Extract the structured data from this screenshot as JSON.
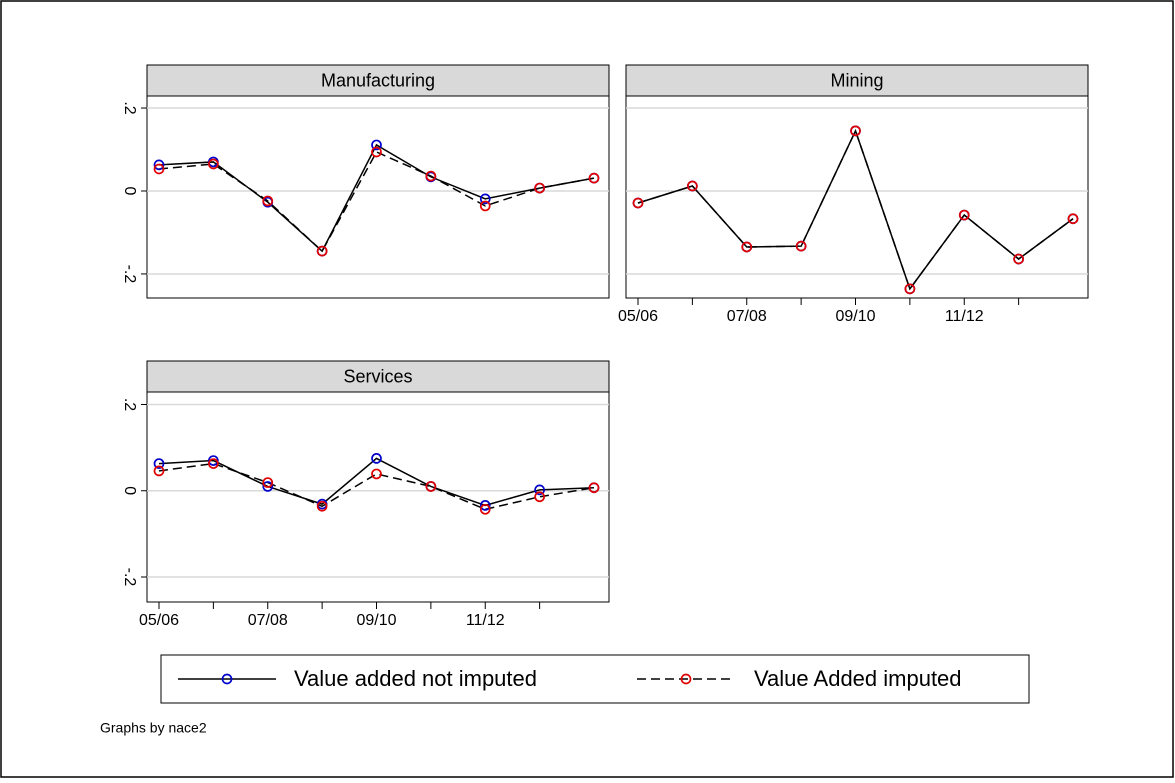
{
  "chart_data": [
    {
      "type": "line",
      "title": "Manufacturing",
      "categories": [
        "05/06",
        null,
        "07/08",
        null,
        "09/10",
        null,
        "11/12",
        null,
        null
      ],
      "ylim": [
        -0.258,
        0.229
      ],
      "yticks": [
        {
          "value": -0.2,
          "label": "-.2"
        },
        0,
        {
          "value": 0.2,
          "label": ".2"
        }
      ],
      "grid": true,
      "show_xaxis": false,
      "show_yaxis": true,
      "series": [
        {
          "name": "Value added not imputed",
          "color": "#0000cc",
          "line_color": "#000000",
          "dash": false,
          "values": [
            0.063,
            0.07,
            -0.027,
            -0.145,
            0.111,
            0.034,
            -0.019,
            0.007,
            0.031
          ]
        },
        {
          "name": "Value Added imputed",
          "color": "#e00000",
          "line_color": "#000000",
          "dash": true,
          "values": [
            0.053,
            0.065,
            -0.024,
            -0.145,
            0.094,
            0.036,
            -0.036,
            0.007,
            0.031
          ]
        }
      ]
    },
    {
      "type": "line",
      "title": "Mining",
      "categories": [
        "05/06",
        null,
        "07/08",
        null,
        "09/10",
        null,
        "11/12",
        null,
        null
      ],
      "ylim": [
        -0.258,
        0.229
      ],
      "yticks": [
        {
          "value": -0.2,
          "label": "-.2"
        },
        0,
        {
          "value": 0.2,
          "label": ".2"
        }
      ],
      "grid": true,
      "show_xaxis": true,
      "show_yaxis": false,
      "series": [
        {
          "name": "Value added not imputed",
          "color": "#0000cc",
          "line_color": "#000000",
          "dash": false,
          "values": [
            -0.029,
            0.012,
            -0.135,
            -0.133,
            0.145,
            -0.236,
            -0.058,
            -0.164,
            -0.067
          ]
        },
        {
          "name": "Value Added imputed",
          "color": "#e00000",
          "line_color": "#000000",
          "dash": true,
          "values": [
            -0.029,
            0.012,
            -0.135,
            -0.133,
            0.145,
            -0.236,
            -0.058,
            -0.164,
            -0.067
          ]
        }
      ]
    },
    {
      "type": "line",
      "title": "Services",
      "categories": [
        "05/06",
        null,
        "07/08",
        null,
        "09/10",
        null,
        "11/12",
        null,
        null
      ],
      "ylim": [
        -0.258,
        0.229
      ],
      "yticks": [
        {
          "value": -0.2,
          "label": "-.2"
        },
        0,
        {
          "value": 0.2,
          "label": ".2"
        }
      ],
      "grid": true,
      "show_xaxis": true,
      "show_yaxis": true,
      "series": [
        {
          "name": "Value added not imputed",
          "color": "#0000cc",
          "line_color": "#000000",
          "dash": false,
          "values": [
            0.063,
            0.07,
            0.01,
            -0.031,
            0.075,
            0.01,
            -0.034,
            0.002,
            0.007
          ]
        },
        {
          "name": "Value Added imputed",
          "color": "#e00000",
          "line_color": "#000000",
          "dash": true,
          "values": [
            0.046,
            0.063,
            0.019,
            -0.036,
            0.039,
            0.01,
            -0.043,
            -0.014,
            0.007
          ]
        }
      ]
    }
  ],
  "note": "Graphs by nace2"
}
